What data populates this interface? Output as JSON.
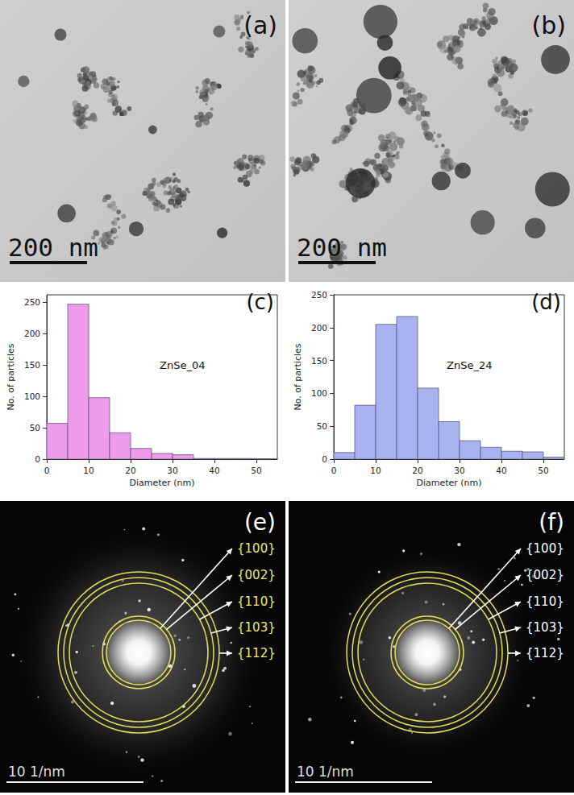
{
  "tem_images": [
    {
      "panel_label": "(a)",
      "scale_bar": "200 nm"
    },
    {
      "panel_label": "(b)",
      "scale_bar": "200 nm"
    }
  ],
  "chart_data": [
    {
      "type": "histogram",
      "panel_label": "(c)",
      "annotation": "ZnSe_04",
      "x_label": "Diameter (nm)",
      "y_label": "No. of particles",
      "bins": [
        0,
        5,
        10,
        15,
        20,
        25,
        30,
        35,
        40,
        45,
        50,
        55
      ],
      "counts": [
        57,
        247,
        98,
        42,
        17,
        9,
        7,
        1,
        1,
        1,
        0
      ],
      "color": "#ee9bee",
      "xlim": [
        0,
        55
      ],
      "xticks": [
        0,
        10,
        20,
        30,
        40,
        50
      ],
      "ylim": [
        0,
        262
      ],
      "yticks": [
        0,
        50,
        100,
        150,
        200,
        250
      ],
      "grid": false
    },
    {
      "type": "histogram",
      "panel_label": "(d)",
      "annotation": "ZnSe_24",
      "x_label": "Diameter (nm)",
      "y_label": "No. of particles",
      "bins": [
        0,
        5,
        10,
        15,
        20,
        25,
        30,
        35,
        40,
        45,
        50,
        55
      ],
      "counts": [
        10,
        82,
        205,
        217,
        108,
        57,
        28,
        18,
        12,
        11,
        3
      ],
      "color": "#a9b3f2",
      "xlim": [
        0,
        55
      ],
      "xticks": [
        0,
        10,
        20,
        30,
        40,
        50
      ],
      "ylim": [
        0,
        250
      ],
      "yticks": [
        0,
        50,
        100,
        150,
        200,
        250
      ],
      "grid": false
    }
  ],
  "diffraction_patterns": [
    {
      "panel_label": "(e)",
      "scale_bar": "10 1/nm",
      "rings": [
        "{100}",
        "{002}",
        "{110}",
        "{103}",
        "{112}"
      ],
      "color": "#f2e86a"
    },
    {
      "panel_label": "(f)",
      "scale_bar": "10 1/nm",
      "rings": [
        "{100}",
        "{002}",
        "{110}",
        "{103}",
        "{112}"
      ],
      "color": "#ffffff"
    }
  ]
}
